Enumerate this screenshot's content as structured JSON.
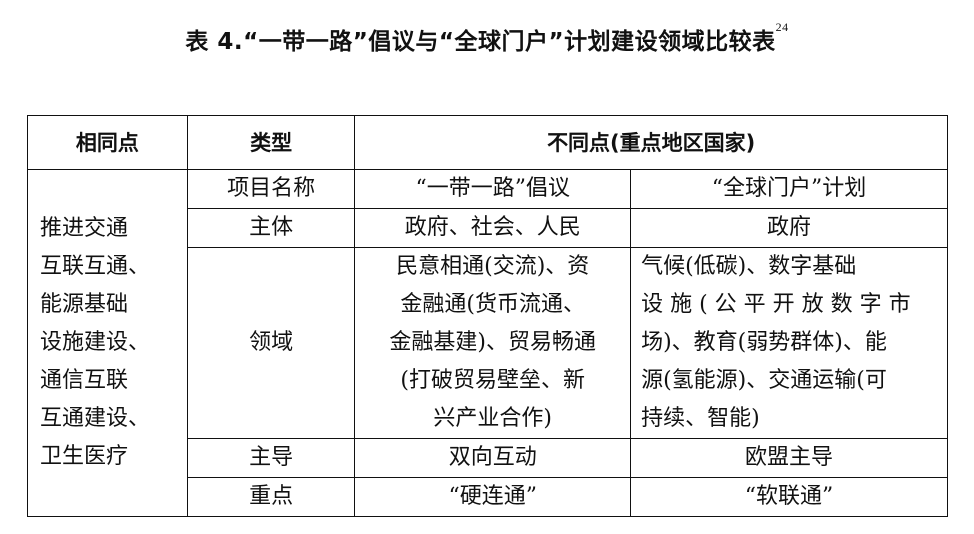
{
  "title": {
    "text": "表 4.“一带一路”倡议与“全球门户”计划建设领域比较表",
    "footnote": "24"
  },
  "table": {
    "headers": {
      "same": "相同点",
      "type": "类型",
      "diff": "不同点(重点地区国家)"
    },
    "same_lines": [
      "推进交通",
      "互联互通、",
      "能源基础",
      "设施建设、",
      "通信互联",
      "互通建设、",
      "卫生医疗"
    ],
    "rows": [
      {
        "type": "项目名称",
        "bri": [
          "“一带一路”倡议"
        ],
        "gg": [
          "“全球门户”计划"
        ]
      },
      {
        "type": "主体",
        "bri": [
          "政府、社会、人民"
        ],
        "gg": [
          "政府"
        ]
      },
      {
        "type": "领域",
        "bri": [
          "民意相通(交流)、资",
          "金融通(货币流通、",
          "金融基建)、贸易畅通",
          "(打破贸易壁垒、新",
          "兴产业合作)"
        ],
        "gg": [
          "气候(低碳)、数字基础",
          "设 施 ( 公 平 开 放 数 字 市",
          "场)、教育(弱势群体)、能",
          "源(氢能源)、交通运输(可",
          "持续、智能)"
        ]
      },
      {
        "type": "主导",
        "bri": [
          "双向互动"
        ],
        "gg": [
          "欧盟主导"
        ]
      },
      {
        "type": "重点",
        "bri": [
          "“硬连通”"
        ],
        "gg": [
          "“软联通”"
        ]
      }
    ]
  }
}
